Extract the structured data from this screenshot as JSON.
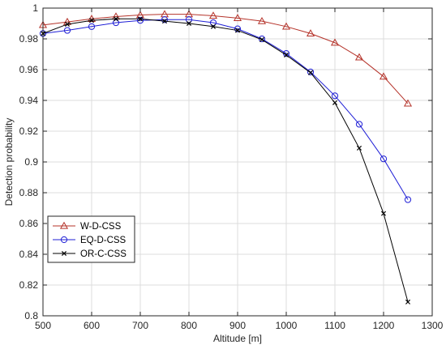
{
  "chart_data": {
    "type": "line",
    "title": "",
    "xlabel": "Altitude [m]",
    "ylabel": "Detection probability",
    "xlim": [
      500,
      1300
    ],
    "ylim": [
      0.8,
      1.0
    ],
    "grid": true,
    "legend_position": "bottom-left",
    "x_ticks": [
      "500",
      "600",
      "700",
      "800",
      "900",
      "1000",
      "1100",
      "1200",
      "1300"
    ],
    "y_ticks": [
      "0.8",
      "0.82",
      "0.84",
      "0.86",
      "0.88",
      "0.9",
      "0.92",
      "0.94",
      "0.96",
      "0.98",
      "1"
    ],
    "x": [
      500,
      550,
      600,
      650,
      700,
      750,
      800,
      850,
      900,
      950,
      1000,
      1050,
      1100,
      1150,
      1200,
      1250
    ],
    "series": [
      {
        "name": "W-D-CSS",
        "color": "#b5332a",
        "marker": "triangle",
        "values": [
          0.989,
          0.991,
          0.993,
          0.9945,
          0.9955,
          0.996,
          0.996,
          0.995,
          0.9935,
          0.9915,
          0.988,
          0.9835,
          0.9775,
          0.968,
          0.9555,
          0.938
        ]
      },
      {
        "name": "EQ-D-CSS",
        "color": "#1f1fd6",
        "marker": "circle",
        "values": [
          0.9835,
          0.9855,
          0.988,
          0.9905,
          0.992,
          0.9925,
          0.9925,
          0.9905,
          0.9865,
          0.98,
          0.9705,
          0.9585,
          0.943,
          0.9245,
          0.902,
          0.8755
        ]
      },
      {
        "name": "OR-C-CSS",
        "color": "#000000",
        "marker": "x",
        "values": [
          0.9835,
          0.9895,
          0.992,
          0.993,
          0.993,
          0.9915,
          0.99,
          0.988,
          0.9855,
          0.9795,
          0.9695,
          0.958,
          0.9385,
          0.909,
          0.8665,
          0.809
        ]
      }
    ]
  }
}
